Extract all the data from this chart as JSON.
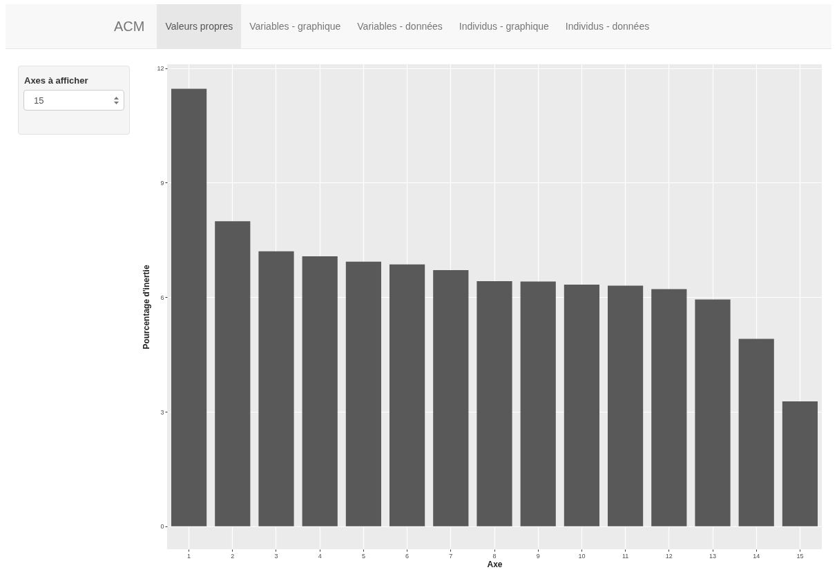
{
  "chart_data": {
    "type": "bar",
    "title": "ACM",
    "xlabel": "Axe",
    "ylabel": "Pourcentage d'inertie",
    "categories": [
      "1",
      "2",
      "3",
      "4",
      "5",
      "6",
      "7",
      "8",
      "9",
      "10",
      "11",
      "12",
      "13",
      "14",
      "15"
    ],
    "values": [
      11.46,
      7.99,
      7.2,
      7.07,
      6.93,
      6.86,
      6.71,
      6.42,
      6.41,
      6.33,
      6.3,
      6.21,
      5.94,
      4.91,
      3.27
    ],
    "color": "#595959",
    "ylim": [
      -0.6,
      12.1
    ],
    "yticks": [
      0,
      3,
      6,
      9,
      12
    ],
    "grid": true,
    "annotations": [
      "Valeurs propres",
      "Variables - graphique",
      "Variables - données",
      "Individus - graphique",
      "Individus - données",
      "Axes à afficher",
      "15"
    ]
  }
}
